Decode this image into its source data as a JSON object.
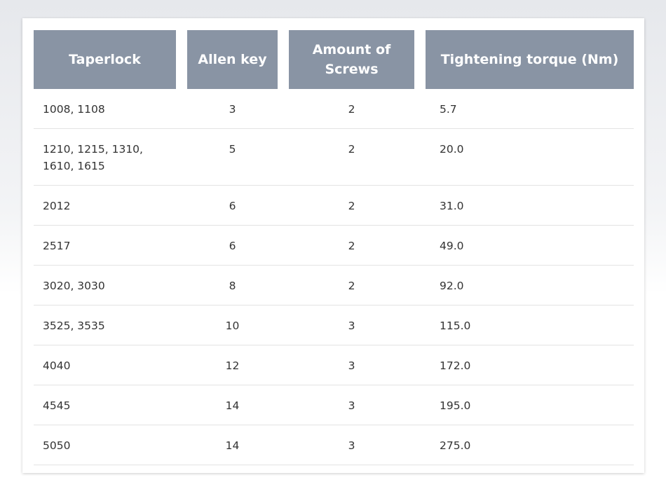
{
  "table": {
    "header": [
      "Taperlock",
      "Allen key",
      "Amount of Screws",
      "Tightening torque (Nm)"
    ],
    "rows": [
      [
        "1008, 1108",
        "3",
        "2",
        "5.7"
      ],
      [
        "1210, 1215, 1310, 1610, 1615",
        "5",
        "2",
        "20.0"
      ],
      [
        "2012",
        "6",
        "2",
        "31.0"
      ],
      [
        "2517",
        "6",
        "2",
        "49.0"
      ],
      [
        "3020, 3030",
        "8",
        "2",
        "92.0"
      ],
      [
        "3525, 3535",
        "10",
        "3",
        "115.0"
      ],
      [
        "4040",
        "12",
        "3",
        "172.0"
      ],
      [
        "4545",
        "14",
        "3",
        "195.0"
      ],
      [
        "5050",
        "14",
        "3",
        "275.0"
      ]
    ]
  }
}
